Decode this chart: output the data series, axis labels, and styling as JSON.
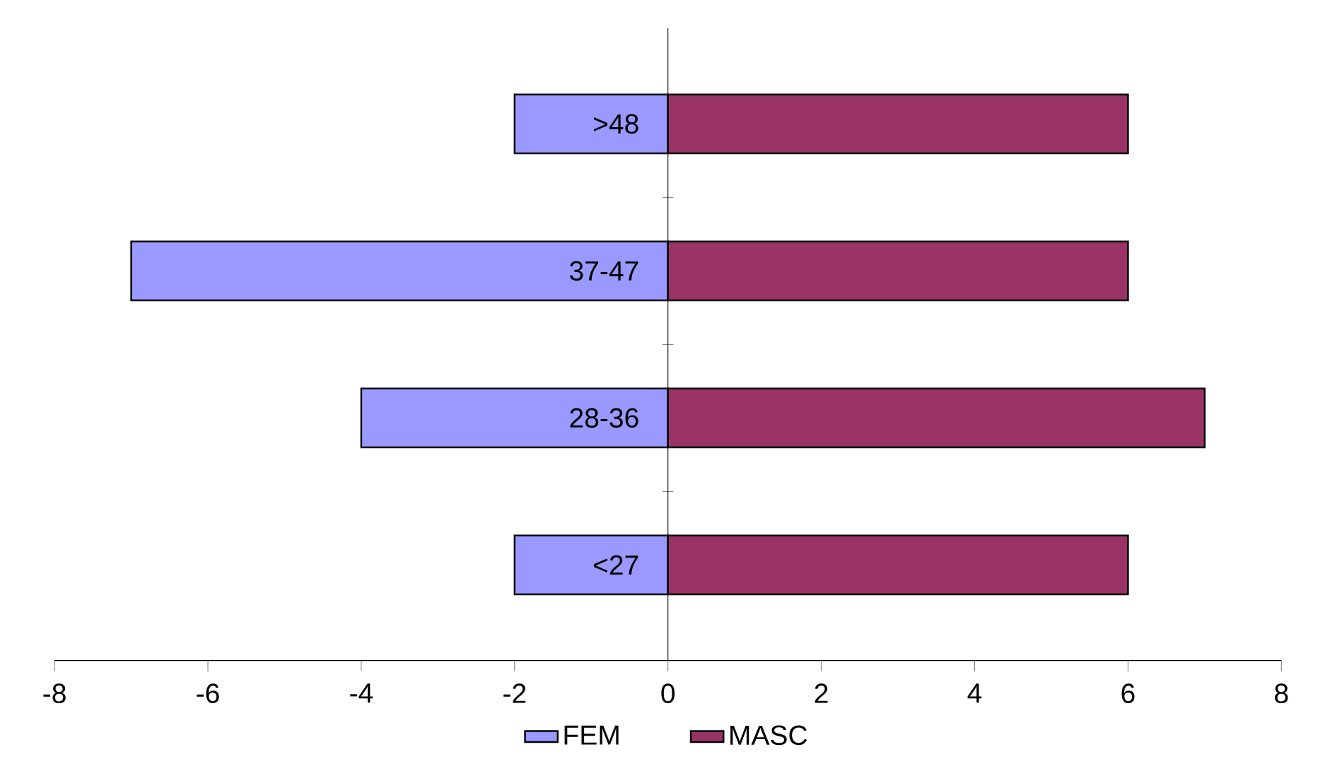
{
  "chart_data": {
    "type": "bar",
    "orientation": "horizontal",
    "stacked": true,
    "categories": [
      ">48",
      "37-47",
      "28-36",
      "<27"
    ],
    "series": [
      {
        "name": "FEM",
        "color": "#9999ff",
        "values": [
          -2,
          -7,
          -4,
          -2
        ]
      },
      {
        "name": "MASC",
        "color": "#993366",
        "values": [
          6,
          6,
          7,
          6
        ]
      }
    ],
    "xlim": [
      -8,
      8
    ],
    "xticks": [
      -8,
      -6,
      -4,
      -2,
      0,
      2,
      4,
      6,
      8
    ],
    "legend": "bottom"
  }
}
